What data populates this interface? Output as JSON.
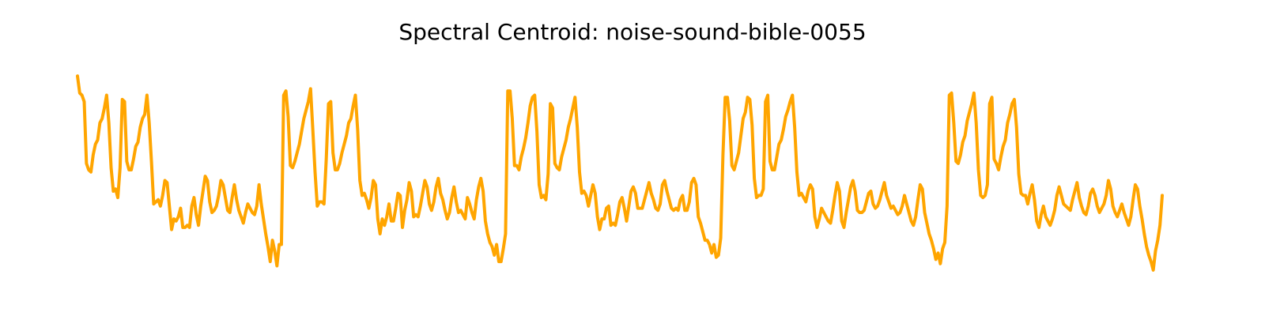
{
  "chart_data": {
    "type": "line",
    "title": "Spectral Centroid: noise-sound-bible-0055",
    "xlabel": "",
    "ylabel": "",
    "axes_visible": false,
    "grid": false,
    "line_color": "#FFA500",
    "ylim": [
      0,
      1
    ],
    "values": [
      0.94,
      0.86,
      0.85,
      0.82,
      0.53,
      0.5,
      0.49,
      0.57,
      0.62,
      0.64,
      0.72,
      0.74,
      0.79,
      0.85,
      0.72,
      0.51,
      0.4,
      0.41,
      0.37,
      0.51,
      0.83,
      0.82,
      0.54,
      0.5,
      0.5,
      0.55,
      0.61,
      0.63,
      0.7,
      0.74,
      0.76,
      0.85,
      0.72,
      0.54,
      0.34,
      0.35,
      0.36,
      0.33,
      0.38,
      0.45,
      0.44,
      0.33,
      0.22,
      0.27,
      0.26,
      0.28,
      0.32,
      0.23,
      0.23,
      0.24,
      0.23,
      0.33,
      0.37,
      0.29,
      0.24,
      0.33,
      0.4,
      0.47,
      0.45,
      0.35,
      0.3,
      0.31,
      0.33,
      0.38,
      0.45,
      0.43,
      0.37,
      0.31,
      0.3,
      0.37,
      0.43,
      0.36,
      0.31,
      0.28,
      0.25,
      0.3,
      0.34,
      0.32,
      0.3,
      0.29,
      0.33,
      0.43,
      0.34,
      0.27,
      0.2,
      0.14,
      0.07,
      0.17,
      0.12,
      0.05,
      0.15,
      0.15,
      0.85,
      0.87,
      0.75,
      0.52,
      0.51,
      0.54,
      0.58,
      0.62,
      0.68,
      0.74,
      0.78,
      0.82,
      0.88,
      0.69,
      0.49,
      0.33,
      0.35,
      0.35,
      0.34,
      0.55,
      0.81,
      0.82,
      0.58,
      0.5,
      0.5,
      0.53,
      0.58,
      0.62,
      0.66,
      0.72,
      0.74,
      0.8,
      0.85,
      0.69,
      0.45,
      0.38,
      0.39,
      0.36,
      0.32,
      0.37,
      0.45,
      0.43,
      0.27,
      0.2,
      0.27,
      0.24,
      0.28,
      0.34,
      0.26,
      0.26,
      0.32,
      0.39,
      0.38,
      0.23,
      0.31,
      0.36,
      0.44,
      0.4,
      0.28,
      0.29,
      0.28,
      0.33,
      0.39,
      0.45,
      0.42,
      0.34,
      0.31,
      0.35,
      0.42,
      0.46,
      0.39,
      0.36,
      0.31,
      0.27,
      0.3,
      0.37,
      0.42,
      0.35,
      0.3,
      0.31,
      0.29,
      0.27,
      0.37,
      0.34,
      0.3,
      0.27,
      0.36,
      0.42,
      0.46,
      0.4,
      0.26,
      0.2,
      0.16,
      0.14,
      0.1,
      0.15,
      0.07,
      0.07,
      0.13,
      0.2,
      0.87,
      0.87,
      0.74,
      0.52,
      0.52,
      0.5,
      0.56,
      0.6,
      0.65,
      0.72,
      0.8,
      0.84,
      0.85,
      0.68,
      0.43,
      0.37,
      0.38,
      0.36,
      0.48,
      0.81,
      0.79,
      0.53,
      0.51,
      0.5,
      0.56,
      0.6,
      0.64,
      0.7,
      0.74,
      0.79,
      0.84,
      0.7,
      0.49,
      0.39,
      0.4,
      0.38,
      0.33,
      0.38,
      0.43,
      0.39,
      0.28,
      0.22,
      0.27,
      0.27,
      0.32,
      0.33,
      0.24,
      0.25,
      0.24,
      0.29,
      0.35,
      0.37,
      0.32,
      0.26,
      0.33,
      0.4,
      0.42,
      0.39,
      0.32,
      0.32,
      0.32,
      0.36,
      0.4,
      0.44,
      0.39,
      0.36,
      0.32,
      0.31,
      0.34,
      0.43,
      0.45,
      0.4,
      0.36,
      0.32,
      0.31,
      0.32,
      0.31,
      0.36,
      0.38,
      0.31,
      0.31,
      0.35,
      0.44,
      0.46,
      0.43,
      0.28,
      0.25,
      0.21,
      0.17,
      0.17,
      0.15,
      0.11,
      0.15,
      0.09,
      0.1,
      0.18,
      0.57,
      0.84,
      0.84,
      0.73,
      0.52,
      0.5,
      0.54,
      0.58,
      0.66,
      0.74,
      0.77,
      0.84,
      0.83,
      0.71,
      0.46,
      0.37,
      0.38,
      0.38,
      0.41,
      0.82,
      0.85,
      0.54,
      0.5,
      0.5,
      0.56,
      0.62,
      0.64,
      0.69,
      0.75,
      0.78,
      0.82,
      0.85,
      0.7,
      0.49,
      0.38,
      0.39,
      0.37,
      0.35,
      0.4,
      0.43,
      0.41,
      0.28,
      0.23,
      0.27,
      0.32,
      0.3,
      0.28,
      0.26,
      0.25,
      0.31,
      0.38,
      0.44,
      0.4,
      0.26,
      0.23,
      0.3,
      0.36,
      0.42,
      0.45,
      0.4,
      0.31,
      0.3,
      0.3,
      0.31,
      0.35,
      0.39,
      0.4,
      0.34,
      0.32,
      0.33,
      0.36,
      0.4,
      0.44,
      0.38,
      0.35,
      0.32,
      0.33,
      0.31,
      0.29,
      0.3,
      0.33,
      0.38,
      0.34,
      0.3,
      0.26,
      0.24,
      0.28,
      0.36,
      0.43,
      0.41,
      0.3,
      0.25,
      0.2,
      0.17,
      0.13,
      0.08,
      0.11,
      0.06,
      0.13,
      0.16,
      0.33,
      0.85,
      0.86,
      0.72,
      0.54,
      0.53,
      0.57,
      0.63,
      0.66,
      0.73,
      0.77,
      0.81,
      0.86,
      0.72,
      0.5,
      0.38,
      0.37,
      0.38,
      0.43,
      0.81,
      0.84,
      0.55,
      0.53,
      0.5,
      0.56,
      0.61,
      0.64,
      0.72,
      0.76,
      0.81,
      0.83,
      0.7,
      0.48,
      0.39,
      0.38,
      0.38,
      0.34,
      0.39,
      0.43,
      0.36,
      0.26,
      0.23,
      0.29,
      0.33,
      0.28,
      0.26,
      0.24,
      0.27,
      0.31,
      0.38,
      0.42,
      0.38,
      0.34,
      0.33,
      0.32,
      0.31,
      0.36,
      0.4,
      0.44,
      0.37,
      0.33,
      0.3,
      0.29,
      0.33,
      0.39,
      0.41,
      0.38,
      0.33,
      0.3,
      0.32,
      0.34,
      0.38,
      0.45,
      0.41,
      0.33,
      0.3,
      0.28,
      0.31,
      0.34,
      0.3,
      0.27,
      0.24,
      0.28,
      0.36,
      0.43,
      0.41,
      0.33,
      0.27,
      0.2,
      0.14,
      0.1,
      0.07,
      0.03,
      0.12,
      0.17,
      0.24,
      0.38
    ]
  }
}
